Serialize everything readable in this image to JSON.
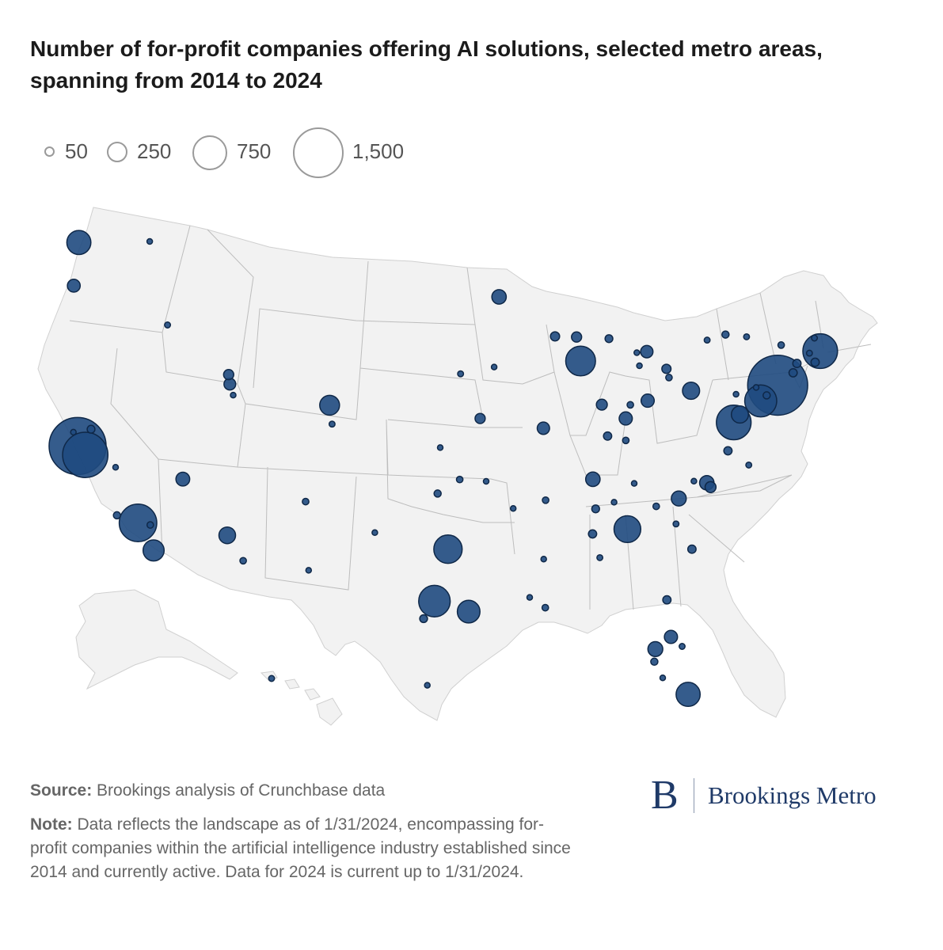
{
  "title": "Number of for-profit companies offering AI solutions, selected metro areas, spanning from 2014 to 2024",
  "legend": {
    "items": [
      {
        "value": 50,
        "label": "50"
      },
      {
        "value": 250,
        "label": "250"
      },
      {
        "value": 750,
        "label": "750"
      },
      {
        "value": 1500,
        "label": "1,500"
      }
    ]
  },
  "colors": {
    "bubble_fill": "#1f4a7f",
    "bubble_stroke": "#0f2848",
    "land": "#f2f2f2",
    "state_border": "#bdbdbd",
    "legend_stroke": "#9a9a9a"
  },
  "chart_data": {
    "type": "bubble-map",
    "title": "Number of for-profit companies offering AI solutions, selected metro areas, spanning from 2014 to 2024",
    "region": "United States",
    "size_legend": [
      50,
      250,
      750,
      1500
    ],
    "points": [
      {
        "name": "Seattle",
        "lon": -122.33,
        "lat": 47.61,
        "value": 340
      },
      {
        "name": "Spokane",
        "lon": -117.43,
        "lat": 47.66,
        "value": 8
      },
      {
        "name": "Portland",
        "lon": -122.68,
        "lat": 45.52,
        "value": 95
      },
      {
        "name": "Boise",
        "lon": -116.2,
        "lat": 43.62,
        "value": 20
      },
      {
        "name": "San Francisco",
        "lon": -122.42,
        "lat": 37.77,
        "value": 1900
      },
      {
        "name": "San Jose",
        "lon": -121.89,
        "lat": 37.34,
        "value": 1200
      },
      {
        "name": "Sacramento",
        "lon": -121.49,
        "lat": 38.58,
        "value": 35
      },
      {
        "name": "Santa Rosa",
        "lon": -122.71,
        "lat": 38.44,
        "value": 15
      },
      {
        "name": "Fresno",
        "lon": -119.79,
        "lat": 36.74,
        "value": 15
      },
      {
        "name": "Santa Barbara",
        "lon": -119.7,
        "lat": 34.42,
        "value": 30
      },
      {
        "name": "Los Angeles",
        "lon": -118.24,
        "lat": 34.05,
        "value": 820
      },
      {
        "name": "Riverside",
        "lon": -117.39,
        "lat": 33.95,
        "value": 25
      },
      {
        "name": "San Diego",
        "lon": -117.16,
        "lat": 32.72,
        "value": 260
      },
      {
        "name": "Las Vegas",
        "lon": -115.14,
        "lat": 36.17,
        "value": 110
      },
      {
        "name": "Phoenix",
        "lon": -112.07,
        "lat": 33.45,
        "value": 160
      },
      {
        "name": "Tucson",
        "lon": -110.97,
        "lat": 32.22,
        "value": 25
      },
      {
        "name": "Ogden",
        "lon": -111.97,
        "lat": 41.22,
        "value": 60
      },
      {
        "name": "Salt Lake City",
        "lon": -111.89,
        "lat": 40.76,
        "value": 80
      },
      {
        "name": "Provo",
        "lon": -111.66,
        "lat": 40.23,
        "value": 15
      },
      {
        "name": "Denver",
        "lon": -104.99,
        "lat": 39.74,
        "value": 230
      },
      {
        "name": "Colorado Springs",
        "lon": -104.82,
        "lat": 38.83,
        "value": 20
      },
      {
        "name": "Albuquerque",
        "lon": -106.65,
        "lat": 35.08,
        "value": 25
      },
      {
        "name": "El Paso",
        "lon": -106.44,
        "lat": 31.76,
        "value": 10
      },
      {
        "name": "Minneapolis",
        "lon": -93.27,
        "lat": 44.98,
        "value": 120
      },
      {
        "name": "Omaha",
        "lon": -95.93,
        "lat": 41.26,
        "value": 20
      },
      {
        "name": "Des Moines",
        "lon": -93.61,
        "lat": 41.59,
        "value": 15
      },
      {
        "name": "Kansas City",
        "lon": -94.58,
        "lat": 39.1,
        "value": 60
      },
      {
        "name": "Wichita",
        "lon": -97.34,
        "lat": 37.69,
        "value": 10
      },
      {
        "name": "Oklahoma City",
        "lon": -97.52,
        "lat": 35.47,
        "value": 30
      },
      {
        "name": "Tulsa",
        "lon": -95.99,
        "lat": 36.15,
        "value": 25
      },
      {
        "name": "Fayetteville",
        "lon": -94.16,
        "lat": 36.06,
        "value": 15
      },
      {
        "name": "Little Rock",
        "lon": -92.29,
        "lat": 34.75,
        "value": 10
      },
      {
        "name": "Dallas",
        "lon": -96.8,
        "lat": 32.78,
        "value": 470
      },
      {
        "name": "Austin",
        "lon": -97.74,
        "lat": 30.27,
        "value": 580
      },
      {
        "name": "San Antonio",
        "lon": -98.49,
        "lat": 29.42,
        "value": 35
      },
      {
        "name": "Houston",
        "lon": -95.37,
        "lat": 29.76,
        "value": 300
      },
      {
        "name": "McAllen",
        "lon": -98.23,
        "lat": 26.2,
        "value": 8
      },
      {
        "name": "Jackson",
        "lon": -90.18,
        "lat": 32.3,
        "value": 8
      },
      {
        "name": "Baton Rouge",
        "lon": -91.15,
        "lat": 30.45,
        "value": 10
      },
      {
        "name": "New Orleans",
        "lon": -90.07,
        "lat": 29.95,
        "value": 25
      },
      {
        "name": "Memphis",
        "lon": -90.05,
        "lat": 35.15,
        "value": 25
      },
      {
        "name": "St. Louis",
        "lon": -90.2,
        "lat": 38.63,
        "value": 90
      },
      {
        "name": "Madison",
        "lon": -89.4,
        "lat": 43.07,
        "value": 50
      },
      {
        "name": "Milwaukee",
        "lon": -87.91,
        "lat": 43.04,
        "value": 60
      },
      {
        "name": "Chicago",
        "lon": -87.63,
        "lat": 41.88,
        "value": 520
      },
      {
        "name": "Grand Rapids",
        "lon": -85.67,
        "lat": 42.96,
        "value": 35
      },
      {
        "name": "Detroit",
        "lon": -83.05,
        "lat": 42.33,
        "value": 90
      },
      {
        "name": "Ann Arbor",
        "lon": -83.74,
        "lat": 42.28,
        "value": 15
      },
      {
        "name": "Toledo",
        "lon": -83.56,
        "lat": 41.65,
        "value": 15
      },
      {
        "name": "Cleveland",
        "lon": -81.69,
        "lat": 41.5,
        "value": 50
      },
      {
        "name": "Akron",
        "lon": -81.52,
        "lat": 41.08,
        "value": 25
      },
      {
        "name": "Pittsburgh",
        "lon": -79.99,
        "lat": 40.44,
        "value": 170
      },
      {
        "name": "Columbus",
        "lon": -82.99,
        "lat": 39.96,
        "value": 100
      },
      {
        "name": "Dayton",
        "lon": -84.19,
        "lat": 39.76,
        "value": 25
      },
      {
        "name": "Cincinnati",
        "lon": -84.51,
        "lat": 39.1,
        "value": 100
      },
      {
        "name": "Indianapolis",
        "lon": -86.16,
        "lat": 39.77,
        "value": 70
      },
      {
        "name": "Louisville",
        "lon": -85.76,
        "lat": 38.25,
        "value": 40
      },
      {
        "name": "Lexington",
        "lon": -84.5,
        "lat": 38.04,
        "value": 25
      },
      {
        "name": "Nashville",
        "lon": -86.78,
        "lat": 36.16,
        "value": 120
      },
      {
        "name": "Knoxville",
        "lon": -83.92,
        "lat": 35.96,
        "value": 15
      },
      {
        "name": "Chattanooga",
        "lon": -85.31,
        "lat": 35.05,
        "value": 15
      },
      {
        "name": "Birmingham",
        "lon": -86.8,
        "lat": 33.52,
        "value": 40
      },
      {
        "name": "Huntsville",
        "lon": -86.59,
        "lat": 34.73,
        "value": 35
      },
      {
        "name": "Montgomery",
        "lon": -86.3,
        "lat": 32.37,
        "value": 20
      },
      {
        "name": "Atlanta",
        "lon": -84.39,
        "lat": 33.75,
        "value": 420
      },
      {
        "name": "Greenville",
        "lon": -82.4,
        "lat": 34.85,
        "value": 25
      },
      {
        "name": "Columbia",
        "lon": -81.03,
        "lat": 34.0,
        "value": 20
      },
      {
        "name": "Charlotte",
        "lon": -80.84,
        "lat": 35.23,
        "value": 130
      },
      {
        "name": "Charleston",
        "lon": -79.93,
        "lat": 32.78,
        "value": 40
      },
      {
        "name": "Greensboro",
        "lon": -79.79,
        "lat": 36.07,
        "value": 15
      },
      {
        "name": "Durham",
        "lon": -78.9,
        "lat": 35.99,
        "value": 120
      },
      {
        "name": "Raleigh",
        "lon": -78.64,
        "lat": 35.78,
        "value": 70
      },
      {
        "name": "Virginia Beach",
        "lon": -76.0,
        "lat": 36.85,
        "value": 20
      },
      {
        "name": "Richmond",
        "lon": -77.44,
        "lat": 37.54,
        "value": 40
      },
      {
        "name": "Washington DC",
        "lon": -77.04,
        "lat": 38.91,
        "value": 700
      },
      {
        "name": "Baltimore",
        "lon": -76.61,
        "lat": 39.29,
        "value": 170
      },
      {
        "name": "Philadelphia",
        "lon": -75.17,
        "lat": 39.95,
        "value": 600
      },
      {
        "name": "Harrisburg",
        "lon": -76.88,
        "lat": 40.27,
        "value": 15
      },
      {
        "name": "Allentown",
        "lon": -75.49,
        "lat": 40.6,
        "value": 15
      },
      {
        "name": "New York",
        "lon": -74.0,
        "lat": 40.71,
        "value": 2100
      },
      {
        "name": "Trenton",
        "lon": -74.76,
        "lat": 40.22,
        "value": 30
      },
      {
        "name": "New Haven",
        "lon": -72.93,
        "lat": 41.31,
        "value": 40
      },
      {
        "name": "Hartford",
        "lon": -72.67,
        "lat": 41.76,
        "value": 40
      },
      {
        "name": "Providence",
        "lon": -71.41,
        "lat": 41.82,
        "value": 40
      },
      {
        "name": "Boston",
        "lon": -71.06,
        "lat": 42.36,
        "value": 700
      },
      {
        "name": "Worcester",
        "lon": -71.8,
        "lat": 42.26,
        "value": 20
      },
      {
        "name": "Manchester",
        "lon": -71.46,
        "lat": 42.99,
        "value": 20
      },
      {
        "name": "Albany",
        "lon": -73.76,
        "lat": 42.65,
        "value": 25
      },
      {
        "name": "Syracuse",
        "lon": -76.15,
        "lat": 43.05,
        "value": 20
      },
      {
        "name": "Rochester",
        "lon": -77.61,
        "lat": 43.16,
        "value": 30
      },
      {
        "name": "Buffalo",
        "lon": -78.88,
        "lat": 42.89,
        "value": 20
      },
      {
        "name": "Jacksonville",
        "lon": -81.66,
        "lat": 30.33,
        "value": 40
      },
      {
        "name": "Orlando",
        "lon": -81.38,
        "lat": 28.54,
        "value": 100
      },
      {
        "name": "Melbourne",
        "lon": -80.61,
        "lat": 28.08,
        "value": 20
      },
      {
        "name": "Tampa",
        "lon": -82.46,
        "lat": 27.95,
        "value": 130
      },
      {
        "name": "Sarasota",
        "lon": -82.53,
        "lat": 27.34,
        "value": 30
      },
      {
        "name": "Cape Coral",
        "lon": -81.95,
        "lat": 26.56,
        "value": 15
      },
      {
        "name": "Miami",
        "lon": -80.19,
        "lat": 25.76,
        "value": 340
      },
      {
        "name": "Honolulu",
        "lon": -157.86,
        "lat": 21.31,
        "value": 20
      },
      {
        "name": "Lubbock",
        "lon": -101.86,
        "lat": 33.58,
        "value": 10
      }
    ]
  },
  "footer": {
    "source_label": "Source:",
    "source_text": " Brookings analysis of Crunchbase data",
    "note_label": "Note:",
    "note_text": " Data reflects the landscape as of 1/31/2024, encompassing for-profit companies within the artificial intelligence industry established since 2014 and currently active. Data for 2024 is current up to 1/31/2024."
  },
  "logo": {
    "mark": "B",
    "text": "Brookings Metro"
  }
}
